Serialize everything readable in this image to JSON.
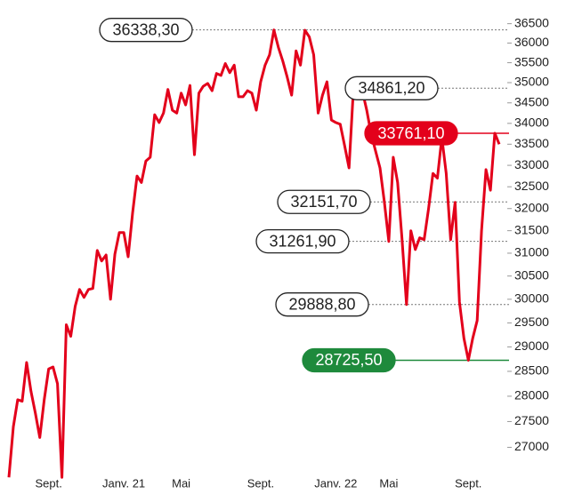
{
  "chart_data": {
    "type": "line",
    "log_scale": true,
    "color": "#e3001b",
    "categories": [
      null,
      null,
      null,
      null,
      null,
      null,
      null,
      null,
      null,
      "Sept.",
      null,
      null,
      null,
      null,
      null,
      null,
      null,
      null,
      null,
      null,
      null,
      null,
      null,
      null,
      null,
      null,
      "Janv. 21",
      null,
      null,
      null,
      null,
      null,
      null,
      null,
      null,
      null,
      null,
      null,
      null,
      "Mai",
      null,
      null,
      null,
      null,
      null,
      null,
      null,
      null,
      null,
      null,
      null,
      null,
      null,
      null,
      null,
      null,
      null,
      "Sept.",
      null,
      null,
      null,
      null,
      null,
      null,
      null,
      null,
      null,
      null,
      null,
      null,
      null,
      null,
      null,
      null,
      "Janv. 22",
      null,
      null,
      null,
      null,
      null,
      null,
      null,
      null,
      null,
      null,
      null,
      "Mai",
      null,
      null,
      null,
      null,
      null,
      null,
      null,
      null,
      null,
      null,
      null,
      null,
      null,
      null,
      null,
      null,
      null,
      "Sept.",
      null,
      null,
      null,
      null,
      null,
      null,
      null
    ],
    "values": [
      26430,
      27400,
      27930,
      27900,
      28680,
      28100,
      27660,
      27190,
      27930,
      28550,
      28590,
      28250,
      26430,
      29460,
      29220,
      29850,
      30210,
      30040,
      30210,
      30230,
      31060,
      30830,
      30960,
      30000,
      30980,
      31460,
      31460,
      30920,
      31900,
      32750,
      32600,
      33100,
      33190,
      34210,
      34020,
      34250,
      34830,
      34320,
      34250,
      34740,
      34450,
      34930,
      33250,
      34740,
      34910,
      34980,
      34800,
      35230,
      35180,
      35480,
      35250,
      35440,
      34650,
      34650,
      34800,
      34740,
      34320,
      35020,
      35440,
      35700,
      36338.3,
      35890,
      35540,
      35140,
      34690,
      35800,
      35440,
      36330,
      36160,
      35700,
      34250,
      34690,
      35020,
      34080,
      34020,
      33980,
      33460,
      32940,
      34861.2,
      34690,
      34800,
      34320,
      33750,
      33340,
      32940,
      32151.7,
      31261.9,
      33190,
      32600,
      31300,
      29888.8,
      31500,
      31080,
      31340,
      31300,
      32000,
      32810,
      32700,
      33660,
      32810,
      31300,
      32140,
      29940,
      29180,
      28725.5,
      29180,
      29550,
      31500,
      32900,
      32420,
      33761.1,
      33500
    ],
    "ylim": [
      26400,
      36700
    ],
    "yticks": [
      27000,
      27500,
      28000,
      28500,
      29000,
      29500,
      30000,
      30500,
      31000,
      31500,
      32000,
      32500,
      33000,
      33500,
      34000,
      34500,
      35000,
      35500,
      36000,
      36500
    ],
    "annotations": [
      {
        "value": 36338.3,
        "label": "36338,30",
        "color": "#ffffff"
      },
      {
        "value": 34861.2,
        "label": "34861,20",
        "color": "#ffffff"
      },
      {
        "value": 33761.1,
        "label": "33761,10",
        "color": "#e3001b"
      },
      {
        "value": 32151.7,
        "label": "32151,70",
        "color": "#ffffff"
      },
      {
        "value": 31261.9,
        "label": "31261,90",
        "color": "#ffffff"
      },
      {
        "value": 29888.8,
        "label": "29888,80",
        "color": "#ffffff"
      },
      {
        "value": 28725.5,
        "label": "28725,50",
        "color": "#1e8a3c"
      }
    ]
  }
}
